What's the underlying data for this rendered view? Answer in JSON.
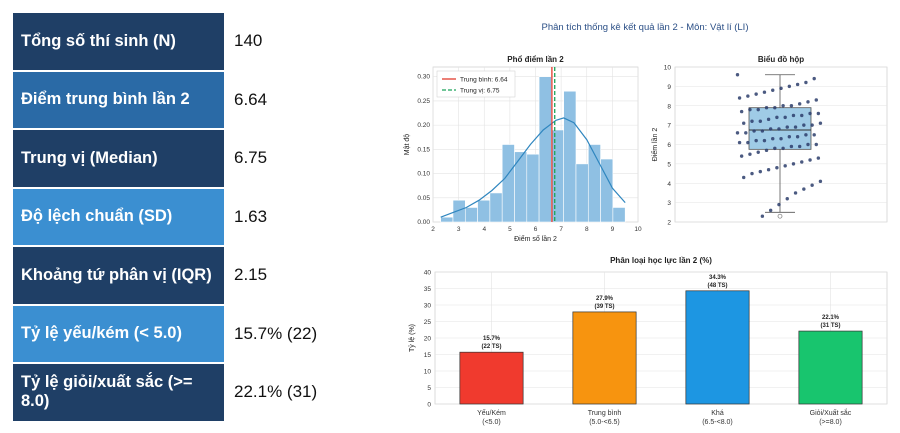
{
  "stats_table": {
    "rows": [
      {
        "label": "Tổng số thí sinh (N)",
        "value": "140"
      },
      {
        "label": "Điểm trung bình lần 2",
        "value": "6.64"
      },
      {
        "label": "Trung vị (Median)",
        "value": "6.75"
      },
      {
        "label": "Độ lệch chuẩn (SD)",
        "value": "1.63"
      },
      {
        "label": "Khoảng tứ phân vị (IQR)",
        "value": "2.15"
      },
      {
        "label": "Tỷ lệ yếu/kém (< 5.0)",
        "value": "15.7% (22)"
      },
      {
        "label": "Tỷ lệ giỏi/xuất sắc (>= 8.0)",
        "value": "22.1% (31)"
      }
    ]
  },
  "colors": {
    "table_dark": "#1f3f66",
    "table_mid": "#2a6aa6",
    "table_light": "#3b8fd1"
  },
  "figure": {
    "suptitle": "Phân tích thống kê kết quả lần 2 - Môn: Vật lí (LI)"
  },
  "chart_data": [
    {
      "type": "bar",
      "subtype": "histogram",
      "title": "Phổ điểm lần 2",
      "xlabel": "Điểm số lần 2",
      "ylabel": "Mật độ",
      "xlim": [
        2,
        10
      ],
      "ylim": [
        0,
        0.32
      ],
      "xticks": [
        "2",
        "3",
        "4",
        "5",
        "6",
        "7",
        "8",
        "9",
        "10"
      ],
      "yticks": [
        "0.00",
        "0.05",
        "0.10",
        "0.15",
        "0.20",
        "0.25",
        "0.30"
      ],
      "bin_edges": [
        2.3,
        2.78,
        3.26,
        3.74,
        4.22,
        4.7,
        5.18,
        5.66,
        6.14,
        6.62,
        7.1,
        7.58,
        8.06,
        8.54,
        9.02,
        9.5
      ],
      "values": [
        0.01,
        0.045,
        0.03,
        0.045,
        0.06,
        0.16,
        0.145,
        0.14,
        0.3,
        0.19,
        0.27,
        0.12,
        0.16,
        0.13,
        0.03
      ],
      "kde": {
        "x": [
          2.3,
          2.8,
          3.3,
          3.8,
          4.3,
          4.8,
          5.3,
          5.8,
          6.3,
          6.8,
          7.1,
          7.5,
          8.0,
          8.5,
          9.0,
          9.5
        ],
        "y": [
          0.01,
          0.02,
          0.03,
          0.045,
          0.065,
          0.09,
          0.125,
          0.16,
          0.19,
          0.21,
          0.215,
          0.205,
          0.17,
          0.12,
          0.07,
          0.04
        ]
      },
      "vlines": [
        {
          "name": "Trung bình: 6.64",
          "x": 6.64,
          "color": "#e23b2e"
        },
        {
          "name": "Trung vị: 6.75",
          "x": 6.75,
          "color": "#1aa35a"
        }
      ],
      "legend": "top-left"
    },
    {
      "type": "scatter",
      "subtype": "boxplot",
      "title": "Biểu đồ hộp",
      "ylabel": "Điểm lần 2",
      "ylim": [
        2,
        10
      ],
      "yticks": [
        "2",
        "3",
        "4",
        "5",
        "6",
        "7",
        "8",
        "9",
        "10"
      ],
      "box": {
        "q1": 5.75,
        "median": 6.75,
        "q3": 7.9,
        "whisker_low": 2.5,
        "whisker_high": 9.6,
        "outliers": [
          2.3
        ]
      },
      "points_y": [
        9.6,
        9.4,
        9.2,
        9.1,
        9.0,
        8.9,
        8.8,
        8.7,
        8.6,
        8.5,
        8.4,
        8.3,
        8.2,
        8.1,
        8.0,
        8.0,
        7.9,
        7.9,
        7.8,
        7.8,
        7.7,
        7.6,
        7.6,
        7.5,
        7.5,
        7.4,
        7.4,
        7.3,
        7.2,
        7.2,
        7.1,
        7.1,
        7.0,
        7.0,
        6.9,
        6.9,
        6.8,
        6.8,
        6.7,
        6.7,
        6.6,
        6.6,
        6.5,
        6.5,
        6.4,
        6.4,
        6.3,
        6.3,
        6.2,
        6.2,
        6.1,
        6.1,
        6.0,
        6.0,
        5.9,
        5.9,
        5.8,
        5.8,
        5.7,
        5.6,
        5.5,
        5.4,
        5.3,
        5.2,
        5.1,
        5.0,
        4.9,
        4.8,
        4.7,
        4.6,
        4.5,
        4.3,
        4.1,
        3.9,
        3.7,
        3.5,
        3.2,
        2.9,
        2.6,
        2.3
      ]
    },
    {
      "type": "bar",
      "title": "Phân loại học lực lần 2 (%)",
      "ylabel": "Tỷ lệ (%)",
      "ylim": [
        0,
        40
      ],
      "yticks": [
        "0",
        "5",
        "10",
        "15",
        "20",
        "25",
        "30",
        "35",
        "40"
      ],
      "categories": [
        {
          "name": "Yếu/Kém",
          "range": "(<5.0)",
          "value": 15.7,
          "label_pct": "15.7%",
          "label_ts": "(22 TS)",
          "color": "#f03a2e"
        },
        {
          "name": "Trung bình",
          "range": "(5.0-<6.5)",
          "value": 27.9,
          "label_pct": "27.9%",
          "label_ts": "(39 TS)",
          "color": "#f7940f"
        },
        {
          "name": "Khá",
          "range": "(6.5-<8.0)",
          "value": 34.3,
          "label_pct": "34.3%",
          "label_ts": "(48 TS)",
          "color": "#1d96e2"
        },
        {
          "name": "Giỏi/Xuất sắc",
          "range": "(>=8.0)",
          "value": 22.1,
          "label_pct": "22.1%",
          "label_ts": "(31 TS)",
          "color": "#18c56e"
        }
      ]
    }
  ]
}
